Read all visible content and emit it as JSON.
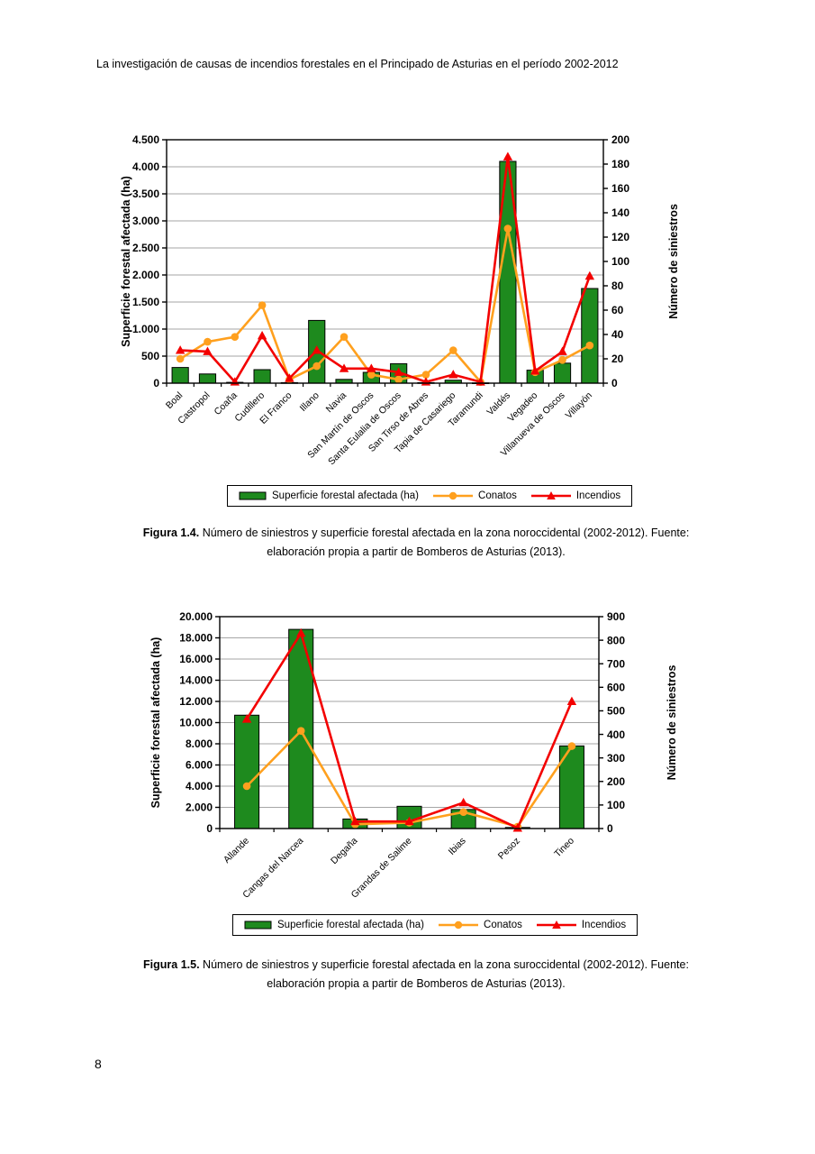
{
  "page": {
    "header": "La investigación de causas de incendios forestales en el Principado de Asturias en el período 2002-2012",
    "page_number": "8"
  },
  "figura_1_4": {
    "caption_label": "Figura 1.4.",
    "caption_rest": " Número de siniestros y superficie forestal afectada en la zona noroccidental (2002-2012). Fuente:",
    "caption_line2": "elaboración propia a partir de Bomberos de Asturias (2013)."
  },
  "figura_1_5": {
    "caption_label": "Figura 1.5.",
    "caption_rest": " Número de siniestros y superficie forestal afectada en la zona suroccidental (2002-2012). Fuente:",
    "caption_line2": "elaboración propia a partir de Bomberos de Asturias (2013)."
  },
  "chart_data": [
    {
      "type": "bar",
      "title": "",
      "region": "noroccidental",
      "categories": [
        "Boal",
        "Castropol",
        "Coaña",
        "Cudillero",
        "El Franco",
        "Illano",
        "Navia",
        "San Martín de Oscos",
        "Santa Eulalia de Oscos",
        "San Tirso de Abres",
        "Tapia de Casariego",
        "Taramundi",
        "Valdés",
        "Vegadeo",
        "Villanueva de Oscos",
        "Villayón"
      ],
      "bars": {
        "name": "Superficie forestal afectada (ha)",
        "axis": "left",
        "values": [
          290,
          170,
          15,
          250,
          10,
          1160,
          70,
          200,
          360,
          10,
          55,
          5,
          4100,
          240,
          370,
          1750
        ]
      },
      "series": [
        {
          "name": "Conatos",
          "type": "line",
          "axis": "right",
          "marker": "circle",
          "values": [
            20,
            34,
            38,
            64,
            3,
            14,
            38,
            7,
            3,
            7,
            27,
            1,
            127,
            9,
            19,
            31
          ]
        },
        {
          "name": "Incendios",
          "type": "line",
          "axis": "right",
          "marker": "triangle",
          "values": [
            27,
            26,
            1,
            39,
            4,
            27,
            12,
            12,
            9,
            1,
            7,
            1,
            186,
            10,
            26,
            88
          ]
        }
      ],
      "left_axis": {
        "title": "Superficie forestal afectada (ha)",
        "min": 0,
        "max": 4500,
        "step": 500,
        "tick_labels": [
          "0",
          "500",
          "1.000",
          "1.500",
          "2.000",
          "2.500",
          "3.000",
          "3.500",
          "4.000",
          "4.500"
        ]
      },
      "right_axis": {
        "title": "Número de siniestros",
        "min": 0,
        "max": 200,
        "step": 20,
        "tick_labels": [
          "0",
          "20",
          "40",
          "60",
          "80",
          "100",
          "120",
          "140",
          "160",
          "180",
          "200"
        ]
      },
      "grid": "horizontal-at-left-ticks",
      "legend_position": "bottom"
    },
    {
      "type": "bar",
      "title": "",
      "region": "suroccidental",
      "categories": [
        "Allande",
        "Cangas del Narcea",
        "Degaña",
        "Grandas de Salime",
        "Ibias",
        "Pesoz",
        "Tineo"
      ],
      "bars": {
        "name": "Superficie forestal afectada (ha)",
        "axis": "left",
        "values": [
          10700,
          18800,
          900,
          2100,
          1800,
          100,
          7800
        ]
      },
      "series": [
        {
          "name": "Conatos",
          "type": "line",
          "axis": "right",
          "marker": "circle",
          "values": [
            180,
            415,
            18,
            25,
            70,
            8,
            350
          ]
        },
        {
          "name": "Incendios",
          "type": "line",
          "axis": "right",
          "marker": "triangle",
          "values": [
            465,
            830,
            30,
            30,
            110,
            2,
            540
          ]
        }
      ],
      "left_axis": {
        "title": "Superficie forestal afectada (ha)",
        "min": 0,
        "max": 20000,
        "step": 2000,
        "tick_labels": [
          "0",
          "2.000",
          "4.000",
          "6.000",
          "8.000",
          "10.000",
          "12.000",
          "14.000",
          "16.000",
          "18.000",
          "20.000"
        ]
      },
      "right_axis": {
        "title": "Número de siniestros",
        "min": 0,
        "max": 900,
        "step": 100,
        "tick_labels": [
          "0",
          "100",
          "200",
          "300",
          "400",
          "500",
          "600",
          "700",
          "800",
          "900"
        ]
      },
      "grid": "horizontal-at-left-ticks",
      "legend_position": "bottom"
    }
  ],
  "colors": {
    "bar_fill": "#1E8A1E",
    "bar_border": "#000000",
    "conatos": "#FFA01E",
    "incendios": "#F30000",
    "grid": "#A6A6A6",
    "axis": "#000000"
  }
}
